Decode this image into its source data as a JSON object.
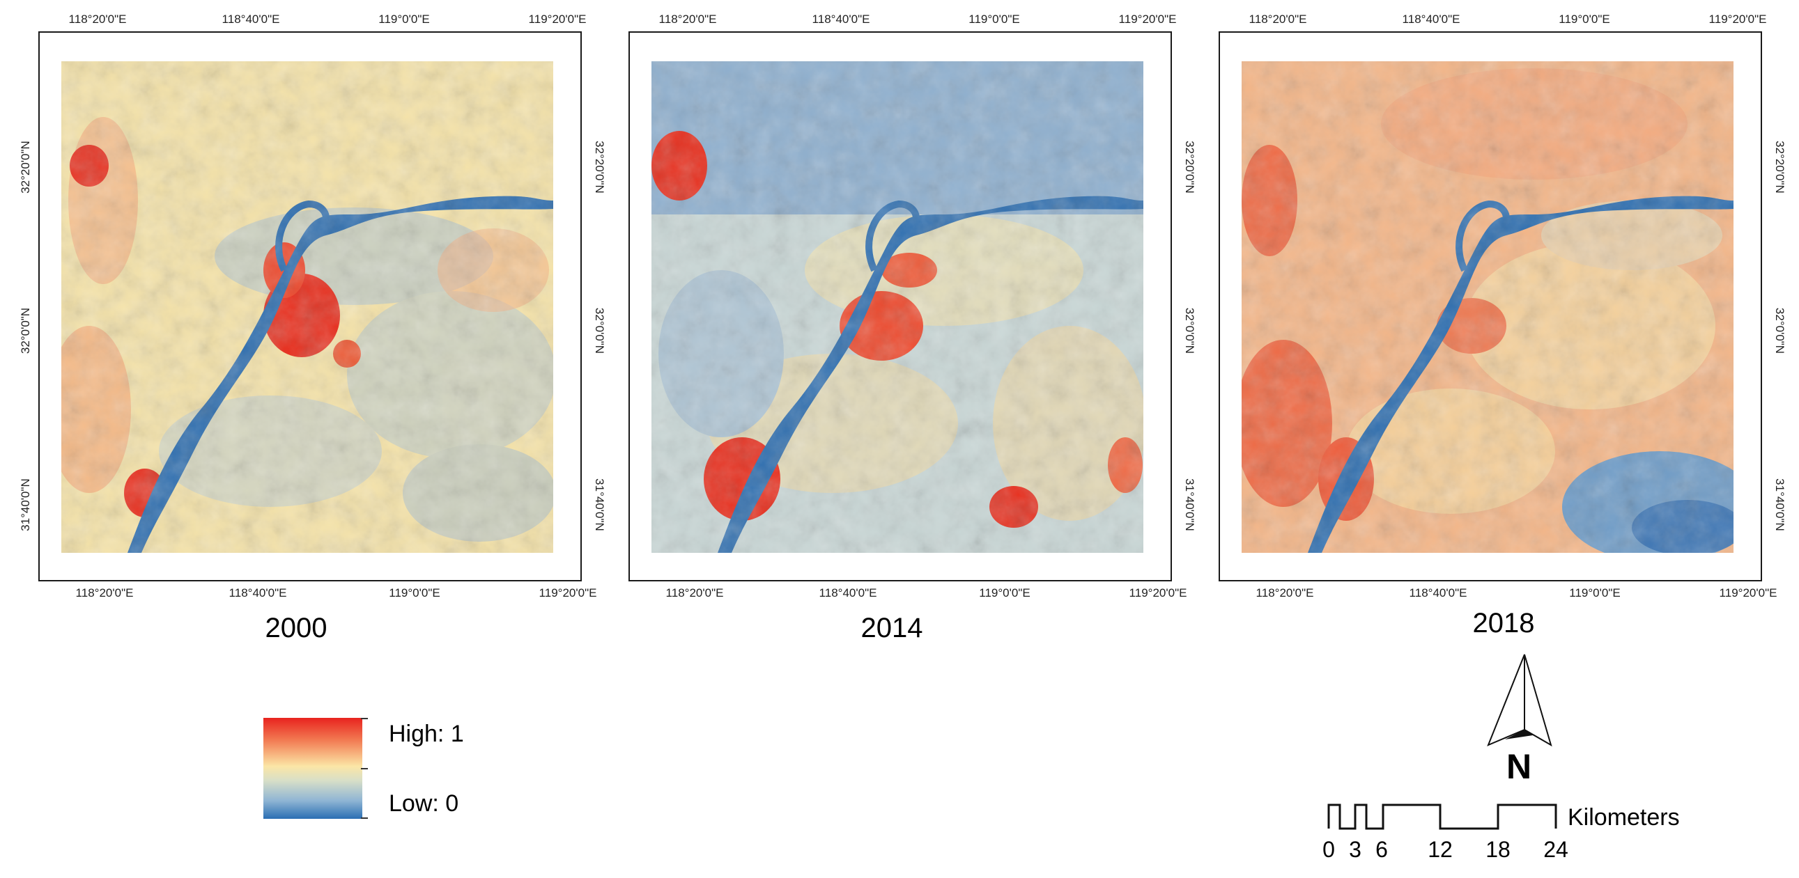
{
  "panels": [
    {
      "year": "2000",
      "top_ticks": [
        "118°20'0\"E",
        "118°40'0\"E",
        "119°0'0\"E",
        "119°20'0\"E"
      ],
      "bottom_ticks": [
        "118°20'0\"E",
        "118°40'0\"E",
        "119°0'0\"E",
        "119°20'0\"E"
      ],
      "left_ticks": [
        "32°20'0\"N",
        "32°0'0\"N",
        "31°40'0\"N"
      ],
      "right_ticks": [
        "32°20'0\"N",
        "32°0'0\"N",
        "31°40'0\"N"
      ]
    },
    {
      "year": "2014",
      "top_ticks": [
        "118°20'0\"E",
        "118°40'0\"E",
        "119°0'0\"E",
        "119°20'0\"E"
      ],
      "bottom_ticks": [
        "118°20'0\"E",
        "118°40'0\"E",
        "119°0'0\"E",
        "119°20'0\"E"
      ],
      "left_ticks": [],
      "right_ticks": [
        "32°20'0\"N",
        "32°0'0\"N",
        "31°40'0\"N"
      ]
    },
    {
      "year": "2018",
      "top_ticks": [
        "118°20'0\"E",
        "118°40'0\"E",
        "119°0'0\"E",
        "119°20'0\"E"
      ],
      "bottom_ticks": [
        "118°20'0\"E",
        "118°40'0\"E",
        "119°0'0\"E",
        "119°20'0\"E"
      ],
      "left_ticks": [],
      "right_ticks": [
        "32°20'0\"N",
        "32°0'0\"N",
        "31°40'0\"N"
      ]
    }
  ],
  "legend": {
    "high_label": "High: 1",
    "low_label": "Low: 0",
    "colors": {
      "high": "#e8231e",
      "mid": "#fbe6a6",
      "low": "#2a6eb3"
    }
  },
  "north_arrow": {
    "label": "N"
  },
  "scale_bar": {
    "unit": "Kilometers",
    "ticks": [
      "0",
      "3",
      "6",
      "12",
      "18",
      "24"
    ]
  },
  "colors": {
    "water": "#2f6fb0",
    "urban": "#e8231e",
    "background": "#ffffff"
  }
}
